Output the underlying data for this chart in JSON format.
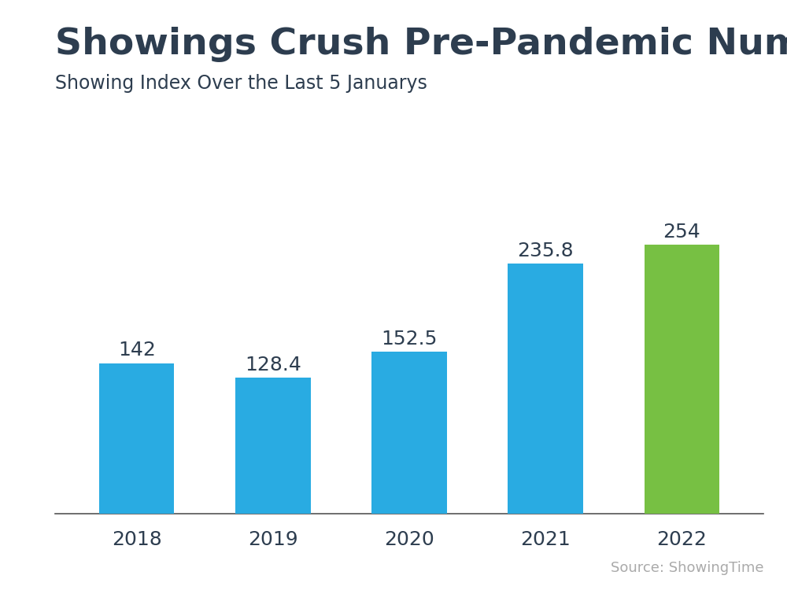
{
  "title": "Showings Crush Pre-Pandemic Numbers",
  "subtitle": "Showing Index Over the Last 5 Januarys",
  "source": "Source: ShowingTime",
  "categories": [
    "2018",
    "2019",
    "2020",
    "2021",
    "2022"
  ],
  "values": [
    142,
    128.4,
    152.5,
    235.8,
    254
  ],
  "bar_colors": [
    "#29ABE2",
    "#29ABE2",
    "#29ABE2",
    "#29ABE2",
    "#77C043"
  ],
  "label_values": [
    "142",
    "128.4",
    "152.5",
    "235.8",
    "254"
  ],
  "background_color": "#FFFFFF",
  "title_color": "#2D3D4F",
  "subtitle_color": "#2D3D4F",
  "source_color": "#AAAAAA",
  "label_color": "#2D3D4F",
  "tick_color": "#2D3D4F",
  "title_fontsize": 34,
  "subtitle_fontsize": 17,
  "source_fontsize": 13,
  "label_fontsize": 18,
  "tick_fontsize": 18,
  "header_bar_color": "#29B5E8",
  "ylim": [
    0,
    290
  ]
}
